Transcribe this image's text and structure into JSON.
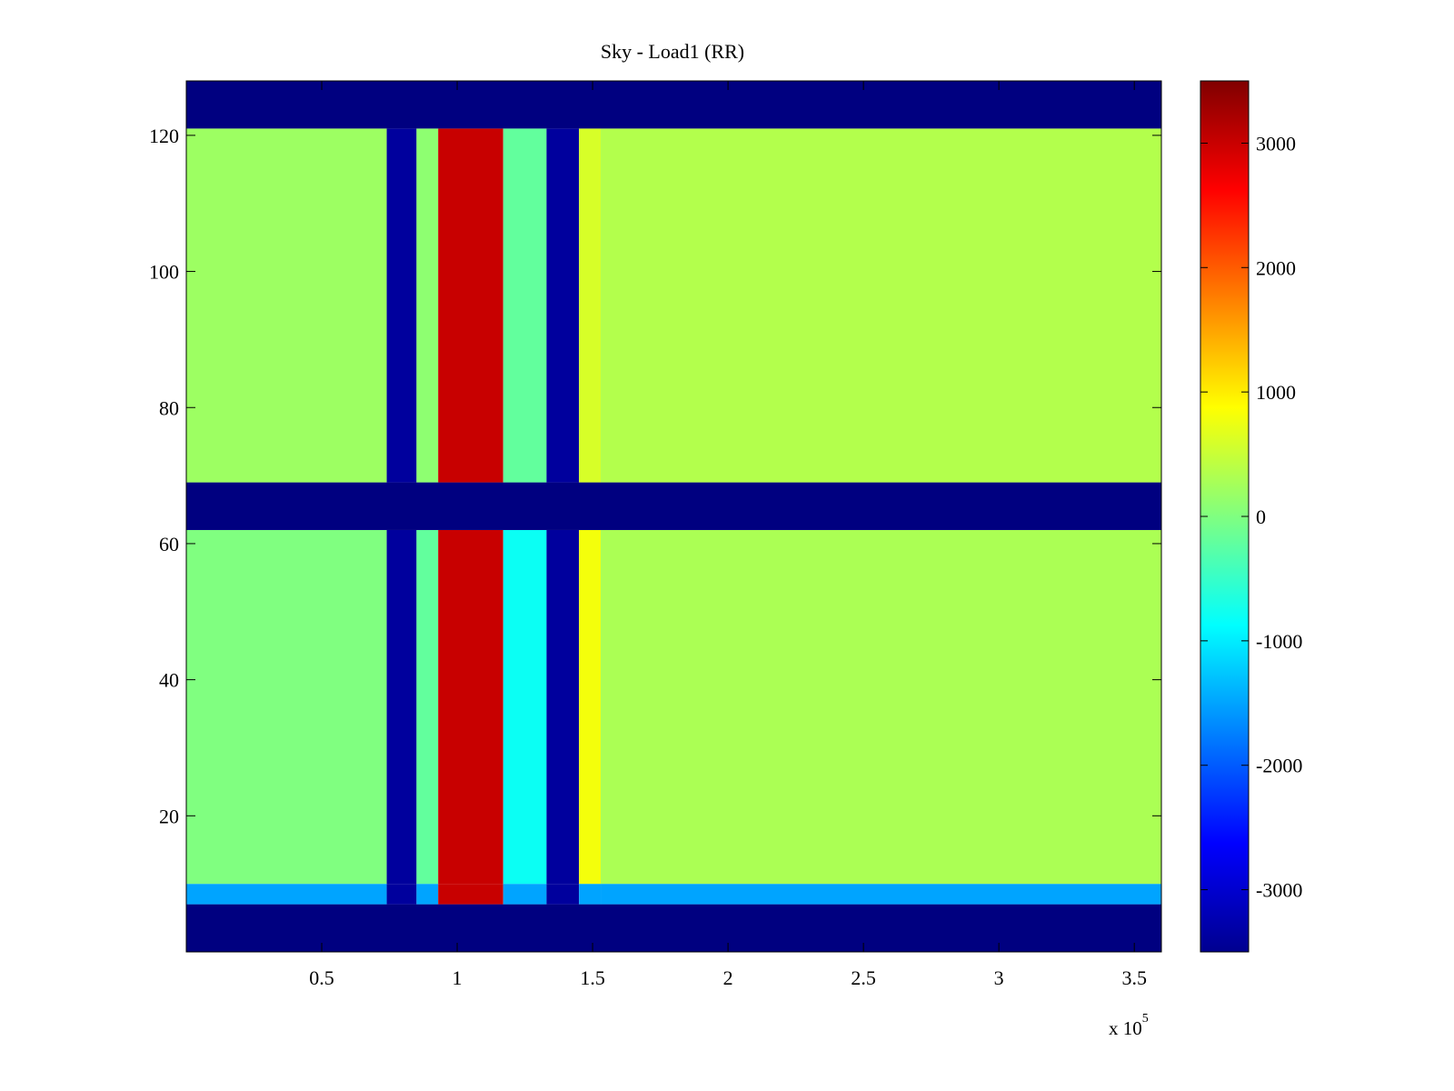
{
  "chart_data": {
    "type": "heatmap",
    "title": "Sky - Load1 (RR)",
    "xlabel": "",
    "ylabel": "",
    "x_exponent_label": "x 10",
    "x_exponent_power": "5",
    "xlim": [
      0,
      360000
    ],
    "ylim": [
      0,
      128
    ],
    "x_ticks": [
      50000,
      100000,
      150000,
      200000,
      250000,
      300000,
      350000
    ],
    "x_tick_labels": [
      "0.5",
      "1",
      "1.5",
      "2",
      "2.5",
      "3",
      "3.5"
    ],
    "y_ticks": [
      20,
      40,
      60,
      80,
      100,
      120
    ],
    "y_tick_labels": [
      "20",
      "40",
      "60",
      "80",
      "100",
      "120"
    ],
    "colormap": "jet",
    "clim": [
      -3500,
      3500
    ],
    "colorbar_ticks": [
      3000,
      2000,
      1000,
      0,
      -1000,
      -2000,
      -3000
    ],
    "colorbar_tick_labels": [
      "3000",
      "2000",
      "1000",
      "0",
      "-1000",
      "-2000",
      "-3000"
    ],
    "masked_value": -3500,
    "y_bands": [
      {
        "y_range": [
          0,
          7
        ],
        "description": "masked",
        "value": -3500
      },
      {
        "y_range": [
          7,
          10
        ],
        "value": -1500
      },
      {
        "y_range": [
          10,
          62
        ],
        "value": 200
      },
      {
        "y_range": [
          62,
          69
        ],
        "description": "masked",
        "value": -3500
      },
      {
        "y_range": [
          69,
          121
        ],
        "value": 400
      },
      {
        "y_range": [
          121,
          128
        ],
        "description": "masked",
        "value": -3500
      }
    ],
    "x_segments": [
      {
        "x_range": [
          0,
          74000
        ],
        "value": 0
      },
      {
        "x_range": [
          74000,
          85000
        ],
        "value": -3300
      },
      {
        "x_range": [
          85000,
          93000
        ],
        "value": -200
      },
      {
        "x_range": [
          93000,
          117000
        ],
        "value": 3000
      },
      {
        "x_range": [
          117000,
          133000
        ],
        "value": -800
      },
      {
        "x_range": [
          133000,
          145000
        ],
        "value": -3300
      },
      {
        "x_range": [
          145000,
          153000
        ],
        "value": 800
      },
      {
        "x_range": [
          153000,
          360000
        ],
        "value": 300
      }
    ]
  }
}
